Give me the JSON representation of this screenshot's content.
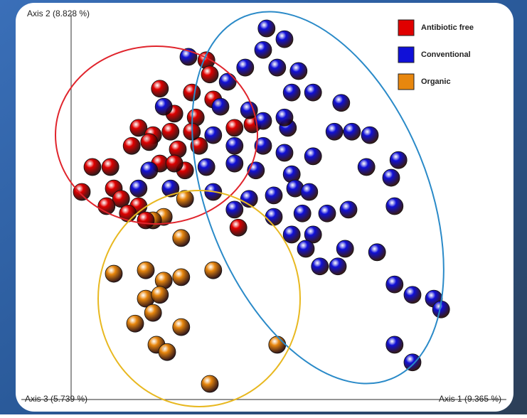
{
  "chart_data": {
    "type": "scatter",
    "x_label": "Axis 1 (9.365 %)",
    "y_label": "Axis 2 (8.828 %)",
    "z_label": "Axis 3 (5.739 %)",
    "xlim": [
      0,
      100
    ],
    "ylim": [
      0,
      100
    ],
    "legend": "top-right",
    "series": [
      {
        "name": "Organic",
        "color": "#e8870e",
        "x": [
          26.7,
          21.7,
          19.2,
          25.8,
          10.0,
          17.5,
          33.3,
          21.7,
          25.8,
          17.5,
          20.8,
          19.2,
          15.0,
          25.8,
          20.0,
          22.5,
          48.3,
          32.5
        ],
        "values": [
          51.9,
          47.2,
          46.3,
          41.7,
          32.4,
          33.3,
          33.3,
          30.6,
          31.5,
          25.9,
          26.9,
          22.2,
          19.4,
          18.5,
          13.9,
          12.0,
          13.9,
          3.7
        ]
      },
      {
        "name": "Antibiotic free",
        "color": "#e00000",
        "x": [
          31.7,
          32.5,
          20.8,
          28.3,
          33.3,
          29.2,
          24.2,
          15.8,
          19.2,
          23.3,
          14.2,
          18.3,
          25.0,
          30.0,
          38.3,
          42.5,
          5.0,
          9.2,
          20.8,
          26.7,
          10.0,
          2.5,
          11.7,
          8.3,
          15.8,
          17.5,
          39.2,
          24.2,
          28.3,
          13.3
        ],
        "values": [
          88.0,
          84.3,
          80.6,
          79.6,
          77.8,
          73.1,
          74.1,
          70.4,
          68.5,
          69.4,
          65.7,
          66.7,
          64.8,
          65.7,
          70.4,
          71.3,
          60.2,
          60.2,
          61.1,
          59.3,
          54.6,
          53.7,
          51.9,
          50.0,
          50.0,
          46.3,
          44.4,
          61.1,
          69.4,
          48.1
        ]
      },
      {
        "name": "Conventional",
        "color": "#1010d8",
        "x": [
          45.8,
          50.0,
          45.0,
          27.5,
          40.8,
          48.3,
          53.3,
          36.7,
          51.7,
          56.7,
          63.3,
          21.7,
          35.0,
          41.7,
          45.0,
          50.8,
          61.7,
          65.8,
          70.0,
          33.3,
          38.3,
          45.0,
          50.0,
          56.7,
          76.7,
          69.2,
          18.3,
          31.7,
          38.3,
          43.3,
          51.7,
          75.0,
          15.8,
          23.3,
          33.3,
          41.7,
          47.5,
          52.5,
          55.8,
          60.0,
          65.0,
          75.8,
          38.3,
          54.2,
          47.5,
          51.7,
          56.7,
          64.2,
          55.0,
          58.3,
          62.5,
          71.7,
          75.8,
          80.0,
          85.0,
          86.7,
          75.8,
          80.0,
          50.0
        ],
        "values": [
          96.3,
          93.5,
          90.7,
          88.9,
          86.1,
          86.1,
          85.2,
          82.4,
          79.6,
          79.6,
          76.9,
          75.9,
          75.9,
          75.0,
          72.2,
          70.4,
          69.4,
          69.4,
          68.5,
          68.5,
          65.7,
          65.7,
          63.9,
          63.0,
          62.0,
          60.2,
          59.3,
          60.2,
          61.1,
          59.3,
          58.3,
          57.4,
          54.6,
          54.6,
          53.7,
          51.9,
          52.8,
          54.6,
          53.7,
          48.1,
          49.1,
          50.0,
          49.1,
          48.1,
          47.2,
          42.6,
          42.6,
          38.9,
          38.9,
          34.3,
          34.3,
          38.0,
          29.6,
          26.9,
          25.9,
          23.1,
          13.9,
          9.3,
          73.1
        ]
      }
    ]
  }
}
